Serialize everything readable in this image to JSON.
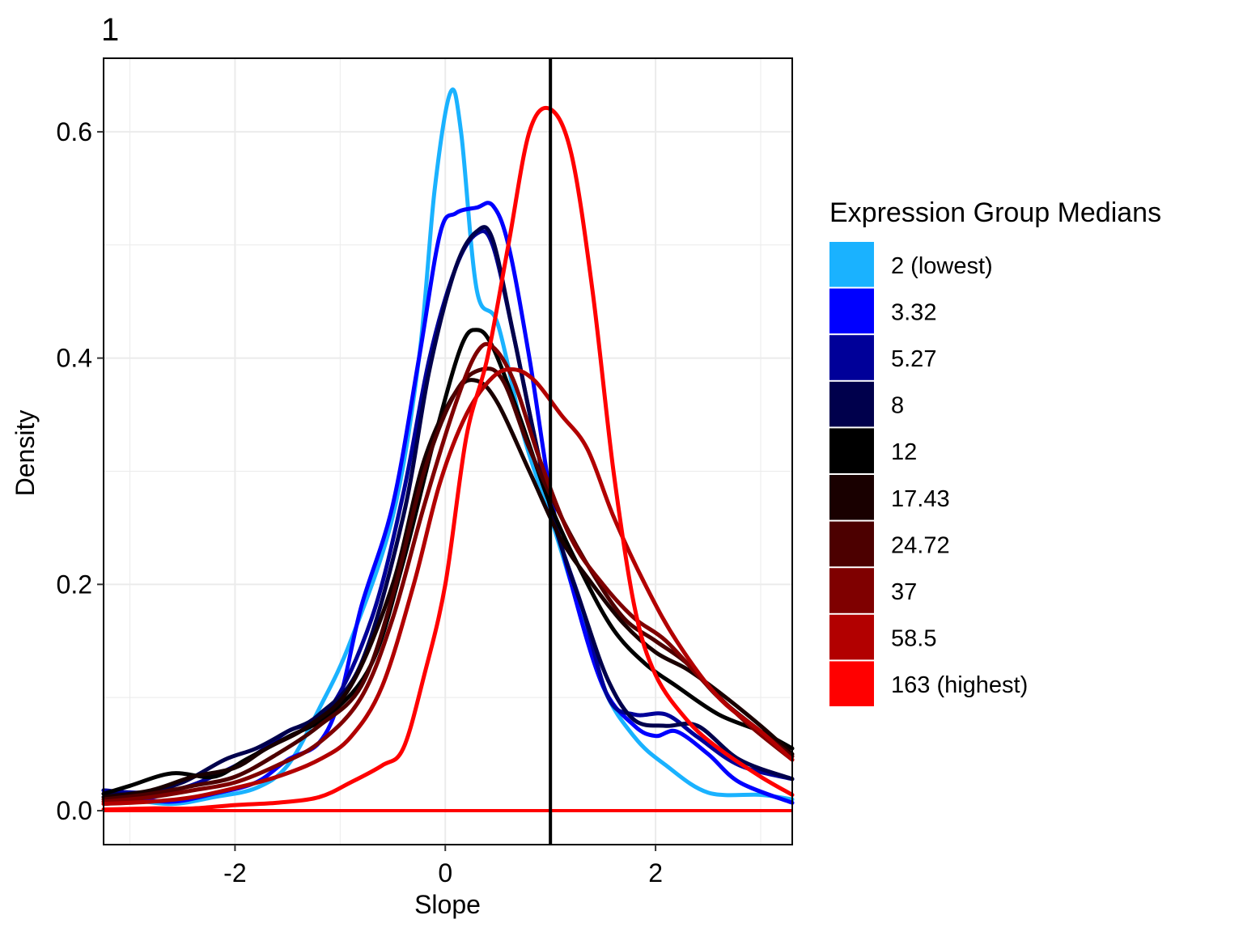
{
  "chart_data": {
    "type": "line",
    "tag": "1",
    "xlabel": "Slope",
    "ylabel": "Density",
    "xlim": [
      -3.25,
      3.3
    ],
    "ylim": [
      -0.03,
      0.665
    ],
    "x_ticks": [
      -2,
      0,
      2
    ],
    "x_tick_labels": [
      "-2",
      "0",
      "2"
    ],
    "y_ticks": [
      0.0,
      0.2,
      0.4,
      0.6
    ],
    "y_tick_labels": [
      "0.0",
      "0.2",
      "0.4",
      "0.6"
    ],
    "grid": true,
    "vline_x": 1,
    "legend": {
      "title": "Expression Group Medians",
      "position": "right"
    },
    "series": [
      {
        "name": "2 (lowest)",
        "color": "#1AB2FF",
        "points": [
          [
            -3.25,
            0.012
          ],
          [
            -3,
            0.01
          ],
          [
            -2.6,
            0.006
          ],
          [
            -2.2,
            0.012
          ],
          [
            -1.8,
            0.02
          ],
          [
            -1.5,
            0.04
          ],
          [
            -1.2,
            0.09
          ],
          [
            -0.9,
            0.15
          ],
          [
            -0.5,
            0.26
          ],
          [
            -0.25,
            0.4
          ],
          [
            -0.1,
            0.55
          ],
          [
            0.05,
            0.635
          ],
          [
            0.15,
            0.6
          ],
          [
            0.3,
            0.46
          ],
          [
            0.5,
            0.43
          ],
          [
            0.75,
            0.33
          ],
          [
            1.0,
            0.26
          ],
          [
            1.2,
            0.2
          ],
          [
            1.5,
            0.11
          ],
          [
            1.8,
            0.065
          ],
          [
            2.1,
            0.04
          ],
          [
            2.5,
            0.016
          ],
          [
            3.0,
            0.014
          ],
          [
            3.3,
            0.01
          ]
        ]
      },
      {
        "name": "3.32",
        "color": "#0000FF",
        "points": [
          [
            -3.25,
            0.018
          ],
          [
            -3,
            0.012
          ],
          [
            -2.6,
            0.008
          ],
          [
            -2.2,
            0.015
          ],
          [
            -1.8,
            0.025
          ],
          [
            -1.5,
            0.045
          ],
          [
            -1.2,
            0.06
          ],
          [
            -1.0,
            0.1
          ],
          [
            -0.8,
            0.18
          ],
          [
            -0.5,
            0.27
          ],
          [
            -0.25,
            0.4
          ],
          [
            -0.05,
            0.51
          ],
          [
            0.1,
            0.528
          ],
          [
            0.3,
            0.533
          ],
          [
            0.45,
            0.535
          ],
          [
            0.6,
            0.5
          ],
          [
            0.8,
            0.4
          ],
          [
            1.0,
            0.28
          ],
          [
            1.2,
            0.2
          ],
          [
            1.5,
            0.11
          ],
          [
            1.8,
            0.075
          ],
          [
            2.0,
            0.066
          ],
          [
            2.2,
            0.07
          ],
          [
            2.5,
            0.05
          ],
          [
            2.8,
            0.025
          ],
          [
            3.3,
            0.007
          ]
        ]
      },
      {
        "name": "5.27",
        "color": "#000099",
        "points": [
          [
            -3.25,
            0.018
          ],
          [
            -2.9,
            0.016
          ],
          [
            -2.5,
            0.02
          ],
          [
            -2.1,
            0.035
          ],
          [
            -1.8,
            0.05
          ],
          [
            -1.5,
            0.07
          ],
          [
            -1.1,
            0.09
          ],
          [
            -0.7,
            0.17
          ],
          [
            -0.4,
            0.28
          ],
          [
            -0.15,
            0.4
          ],
          [
            0.1,
            0.48
          ],
          [
            0.3,
            0.51
          ],
          [
            0.45,
            0.5
          ],
          [
            0.65,
            0.42
          ],
          [
            0.85,
            0.33
          ],
          [
            1.05,
            0.25
          ],
          [
            1.3,
            0.18
          ],
          [
            1.55,
            0.1
          ],
          [
            1.8,
            0.085
          ],
          [
            2.1,
            0.085
          ],
          [
            2.4,
            0.065
          ],
          [
            2.8,
            0.04
          ],
          [
            3.3,
            0.028
          ]
        ]
      },
      {
        "name": "8",
        "color": "#00004C",
        "points": [
          [
            -3.25,
            0.015
          ],
          [
            -2.9,
            0.015
          ],
          [
            -2.5,
            0.025
          ],
          [
            -2.1,
            0.045
          ],
          [
            -1.8,
            0.055
          ],
          [
            -1.5,
            0.07
          ],
          [
            -1.2,
            0.085
          ],
          [
            -0.8,
            0.13
          ],
          [
            -0.4,
            0.26
          ],
          [
            -0.15,
            0.39
          ],
          [
            0.1,
            0.48
          ],
          [
            0.3,
            0.512
          ],
          [
            0.45,
            0.505
          ],
          [
            0.65,
            0.42
          ],
          [
            0.85,
            0.33
          ],
          [
            1.05,
            0.25
          ],
          [
            1.3,
            0.18
          ],
          [
            1.55,
            0.115
          ],
          [
            1.8,
            0.08
          ],
          [
            2.1,
            0.075
          ],
          [
            2.4,
            0.075
          ],
          [
            2.8,
            0.045
          ],
          [
            3.3,
            0.028
          ]
        ]
      },
      {
        "name": "12",
        "color": "#000000",
        "points": [
          [
            -3.25,
            0.015
          ],
          [
            -3,
            0.022
          ],
          [
            -2.6,
            0.033
          ],
          [
            -2.2,
            0.03
          ],
          [
            -1.9,
            0.045
          ],
          [
            -1.5,
            0.065
          ],
          [
            -1.1,
            0.085
          ],
          [
            -0.7,
            0.13
          ],
          [
            -0.4,
            0.22
          ],
          [
            -0.1,
            0.33
          ],
          [
            0.15,
            0.41
          ],
          [
            0.3,
            0.425
          ],
          [
            0.45,
            0.41
          ],
          [
            0.7,
            0.35
          ],
          [
            1.0,
            0.27
          ],
          [
            1.3,
            0.21
          ],
          [
            1.6,
            0.16
          ],
          [
            1.9,
            0.13
          ],
          [
            2.2,
            0.11
          ],
          [
            2.6,
            0.085
          ],
          [
            3.0,
            0.07
          ],
          [
            3.3,
            0.055
          ]
        ]
      },
      {
        "name": "17.43",
        "color": "#190000",
        "points": [
          [
            -3.25,
            0.012
          ],
          [
            -2.8,
            0.018
          ],
          [
            -2.4,
            0.03
          ],
          [
            -2.0,
            0.038
          ],
          [
            -1.7,
            0.055
          ],
          [
            -1.3,
            0.075
          ],
          [
            -0.9,
            0.11
          ],
          [
            -0.5,
            0.2
          ],
          [
            -0.2,
            0.31
          ],
          [
            0.1,
            0.37
          ],
          [
            0.3,
            0.38
          ],
          [
            0.5,
            0.36
          ],
          [
            0.8,
            0.3
          ],
          [
            1.1,
            0.24
          ],
          [
            1.4,
            0.2
          ],
          [
            1.7,
            0.165
          ],
          [
            2.0,
            0.14
          ],
          [
            2.3,
            0.125
          ],
          [
            2.6,
            0.105
          ],
          [
            3.0,
            0.075
          ],
          [
            3.3,
            0.05
          ]
        ]
      },
      {
        "name": "24.72",
        "color": "#4C0000",
        "points": [
          [
            -3.25,
            0.01
          ],
          [
            -2.8,
            0.015
          ],
          [
            -2.4,
            0.022
          ],
          [
            -2.0,
            0.03
          ],
          [
            -1.6,
            0.05
          ],
          [
            -1.2,
            0.075
          ],
          [
            -0.8,
            0.11
          ],
          [
            -0.5,
            0.19
          ],
          [
            -0.2,
            0.3
          ],
          [
            0.1,
            0.37
          ],
          [
            0.35,
            0.39
          ],
          [
            0.55,
            0.38
          ],
          [
            0.8,
            0.32
          ],
          [
            1.1,
            0.26
          ],
          [
            1.4,
            0.21
          ],
          [
            1.7,
            0.17
          ],
          [
            2.0,
            0.15
          ],
          [
            2.3,
            0.13
          ],
          [
            2.6,
            0.1
          ],
          [
            3.0,
            0.07
          ],
          [
            3.3,
            0.048
          ]
        ]
      },
      {
        "name": "37",
        "color": "#7F0000",
        "points": [
          [
            -3.25,
            0.008
          ],
          [
            -2.8,
            0.012
          ],
          [
            -2.4,
            0.018
          ],
          [
            -2.0,
            0.025
          ],
          [
            -1.6,
            0.04
          ],
          [
            -1.2,
            0.06
          ],
          [
            -0.8,
            0.1
          ],
          [
            -0.5,
            0.17
          ],
          [
            -0.2,
            0.27
          ],
          [
            0.1,
            0.36
          ],
          [
            0.3,
            0.405
          ],
          [
            0.45,
            0.41
          ],
          [
            0.65,
            0.38
          ],
          [
            0.9,
            0.31
          ],
          [
            1.2,
            0.24
          ],
          [
            1.5,
            0.2
          ],
          [
            1.8,
            0.17
          ],
          [
            2.1,
            0.15
          ],
          [
            2.5,
            0.11
          ],
          [
            2.9,
            0.075
          ],
          [
            3.3,
            0.045
          ]
        ]
      },
      {
        "name": "58.5",
        "color": "#B20000",
        "points": [
          [
            -3.25,
            0.006
          ],
          [
            -2.8,
            0.008
          ],
          [
            -2.4,
            0.012
          ],
          [
            -2.0,
            0.02
          ],
          [
            -1.6,
            0.03
          ],
          [
            -1.2,
            0.045
          ],
          [
            -0.9,
            0.065
          ],
          [
            -0.6,
            0.11
          ],
          [
            -0.3,
            0.2
          ],
          [
            -0.05,
            0.29
          ],
          [
            0.2,
            0.35
          ],
          [
            0.45,
            0.383
          ],
          [
            0.65,
            0.39
          ],
          [
            0.85,
            0.38
          ],
          [
            1.1,
            0.35
          ],
          [
            1.35,
            0.32
          ],
          [
            1.6,
            0.26
          ],
          [
            1.9,
            0.2
          ],
          [
            2.2,
            0.15
          ],
          [
            2.6,
            0.1
          ],
          [
            3.0,
            0.07
          ],
          [
            3.3,
            0.045
          ]
        ]
      },
      {
        "name": "163 (highest)",
        "color": "#FF0000",
        "points": [
          [
            -3.25,
            0.001
          ],
          [
            -2.8,
            0.002
          ],
          [
            -2.4,
            0.002
          ],
          [
            -2.0,
            0.005
          ],
          [
            -1.6,
            0.007
          ],
          [
            -1.2,
            0.012
          ],
          [
            -0.9,
            0.025
          ],
          [
            -0.6,
            0.04
          ],
          [
            -0.4,
            0.055
          ],
          [
            -0.2,
            0.12
          ],
          [
            0.0,
            0.2
          ],
          [
            0.2,
            0.33
          ],
          [
            0.4,
            0.4
          ],
          [
            0.6,
            0.5
          ],
          [
            0.8,
            0.6
          ],
          [
            1.0,
            0.62
          ],
          [
            1.2,
            0.58
          ],
          [
            1.4,
            0.46
          ],
          [
            1.6,
            0.3
          ],
          [
            1.8,
            0.18
          ],
          [
            2.0,
            0.12
          ],
          [
            2.3,
            0.08
          ],
          [
            2.6,
            0.055
          ],
          [
            3.0,
            0.03
          ],
          [
            3.3,
            0.014
          ]
        ]
      }
    ]
  }
}
